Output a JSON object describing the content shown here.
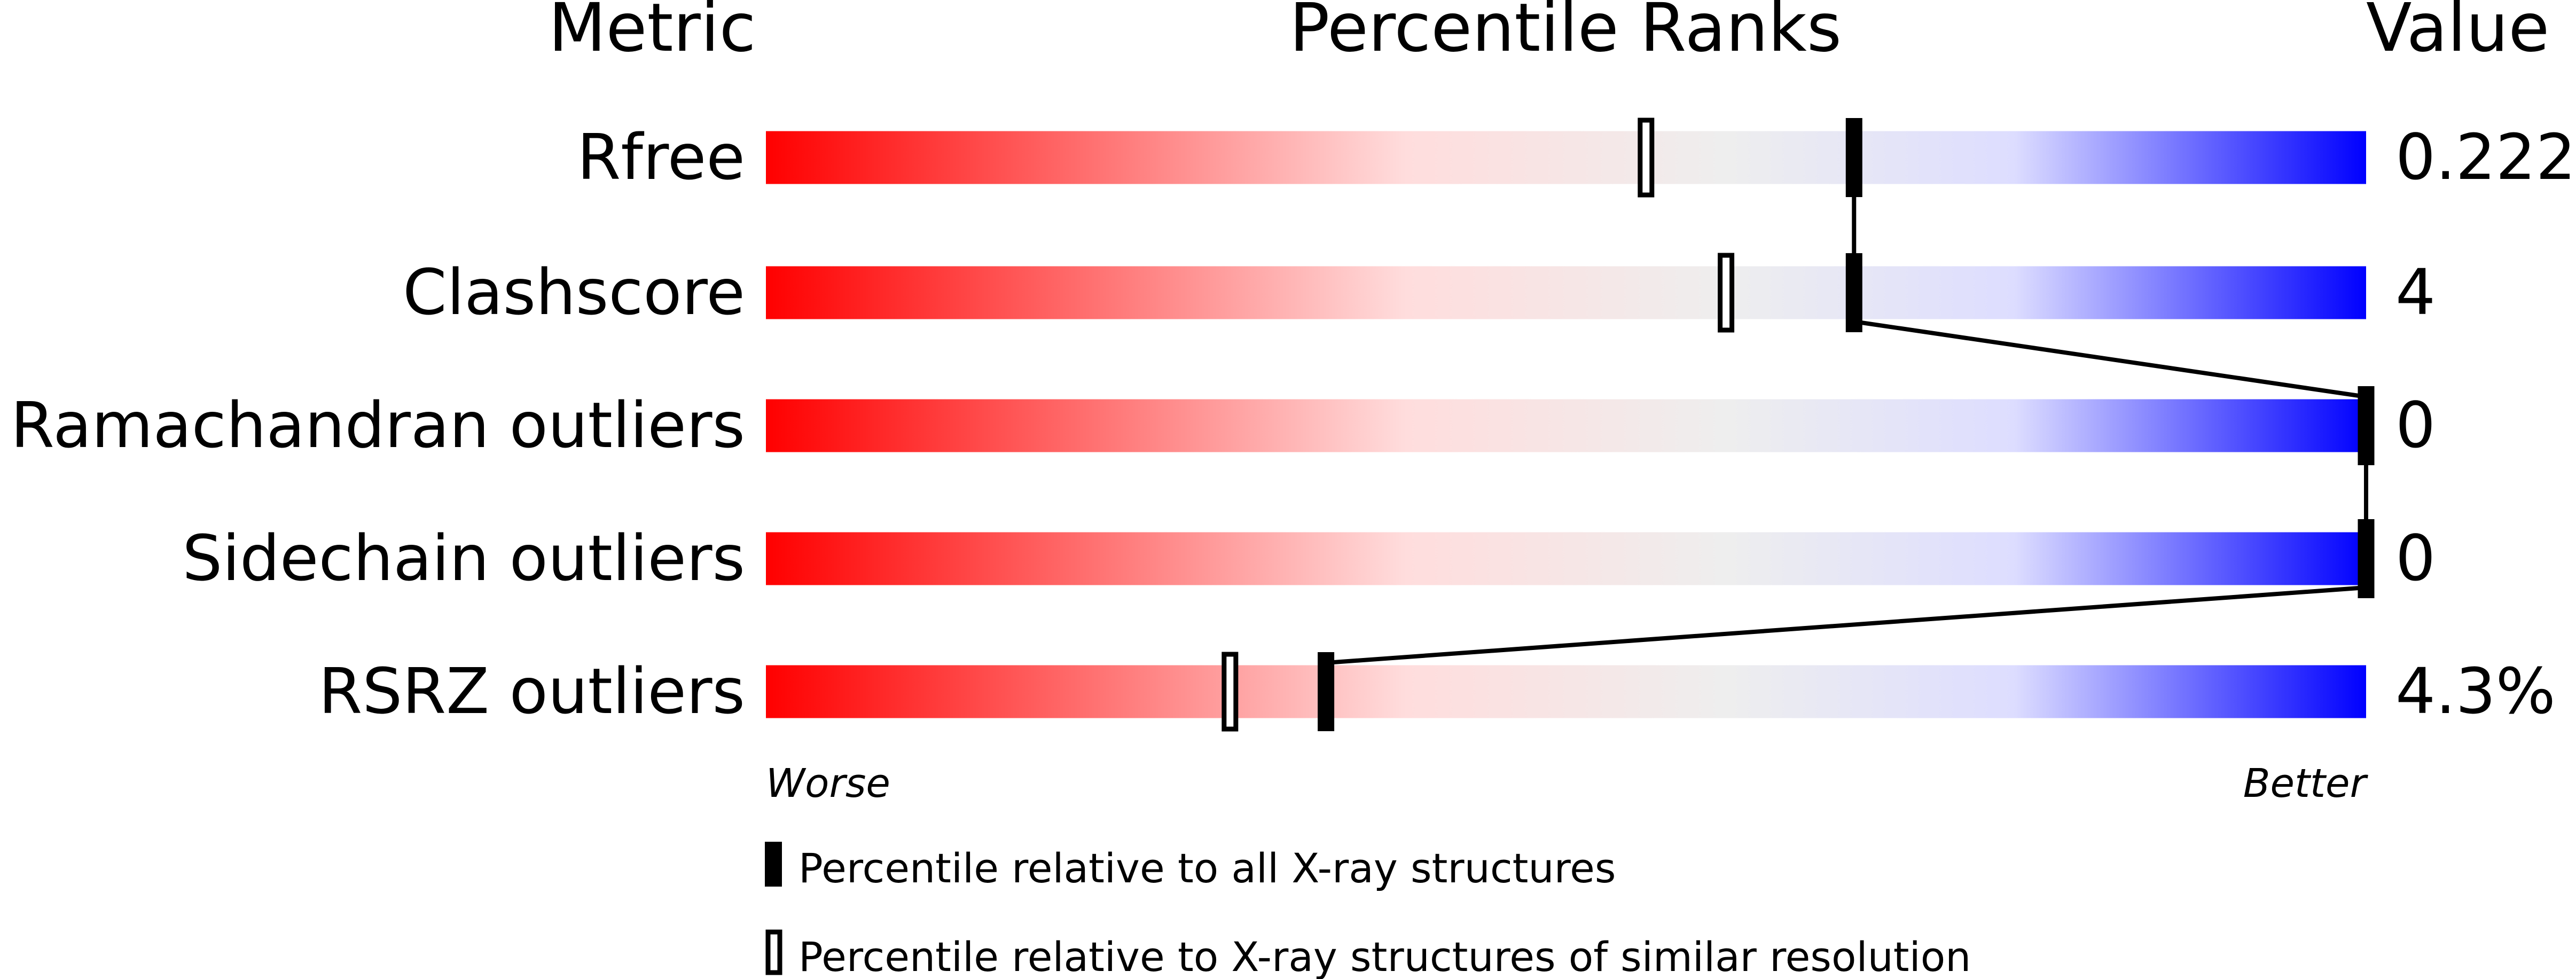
{
  "chart_data": {
    "type": "percentile-slider",
    "headers": {
      "metric": "Metric",
      "ranks": "Percentile Ranks",
      "value": "Value"
    },
    "xlim": [
      0,
      100
    ],
    "axis_labels": {
      "left": "Worse",
      "right": "Better"
    },
    "gradient_colors": [
      "#ff0000",
      "#ffdddd",
      "#eeeeee",
      "#ddddff",
      "#0000ff"
    ],
    "metrics": [
      {
        "name": "Rfree",
        "value": "0.222",
        "percentile_all": 68,
        "percentile_similar": 55
      },
      {
        "name": "Clashscore",
        "value": "4",
        "percentile_all": 68,
        "percentile_similar": 60
      },
      {
        "name": "Ramachandran outliers",
        "value": "0",
        "percentile_all": 100,
        "percentile_similar": null
      },
      {
        "name": "Sidechain outliers",
        "value": "0",
        "percentile_all": 100,
        "percentile_similar": null
      },
      {
        "name": "RSRZ outliers",
        "value": "4.3%",
        "percentile_all": 35,
        "percentile_similar": 29
      }
    ],
    "legend": [
      {
        "marker": "filled",
        "label": "Percentile relative to all X-ray structures"
      },
      {
        "marker": "open",
        "label": "Percentile relative to X-ray structures of similar resolution"
      }
    ]
  }
}
